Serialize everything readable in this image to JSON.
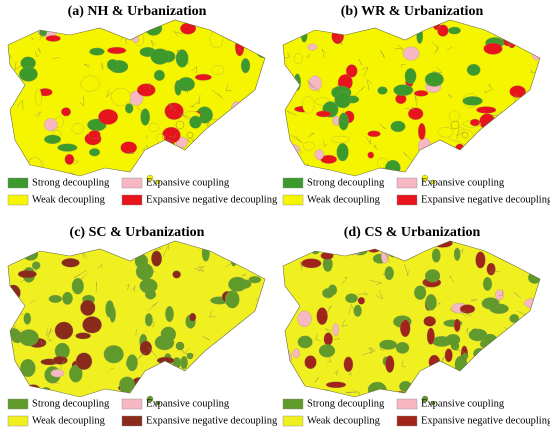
{
  "panels": [
    {
      "title": "(a) NH & Urbanization",
      "legend": [
        {
          "label": "Strong decoupling",
          "color": "#3c9a2c"
        },
        {
          "label": "Expansive coupling",
          "color": "#f7b8c4"
        },
        {
          "label": "Weak decoupling",
          "color": "#f5f500"
        },
        {
          "label": "Expansive negative decoupling",
          "color": "#e8141c"
        }
      ]
    },
    {
      "title": "(b) WR & Urbanization",
      "legend": [
        {
          "label": "Strong decoupling",
          "color": "#3c9a2c"
        },
        {
          "label": "Expansive coupling",
          "color": "#f7b8c4"
        },
        {
          "label": "Weak decoupling",
          "color": "#f5f500"
        },
        {
          "label": "Expansive negative decoupling",
          "color": "#e8141c"
        }
      ]
    },
    {
      "title": "(c) SC & Urbanization",
      "legend": [
        {
          "label": "Strong decoupling",
          "color": "#5f9a2a"
        },
        {
          "label": "Expansive coupling",
          "color": "#f7b8c4"
        },
        {
          "label": "Weak decoupling",
          "color": "#f0f020"
        },
        {
          "label": "Expansive negative decoupling",
          "color": "#8a2a1a"
        }
      ]
    },
    {
      "title": "(d) CS & Urbanization",
      "legend": [
        {
          "label": "Strong decoupling",
          "color": "#5f9a2a"
        },
        {
          "label": "Expansive coupling",
          "color": "#f7b8c4"
        },
        {
          "label": "Weak decoupling",
          "color": "#f0f020"
        },
        {
          "label": "Expansive negative decoupling",
          "color": "#a0241a"
        }
      ]
    }
  ]
}
